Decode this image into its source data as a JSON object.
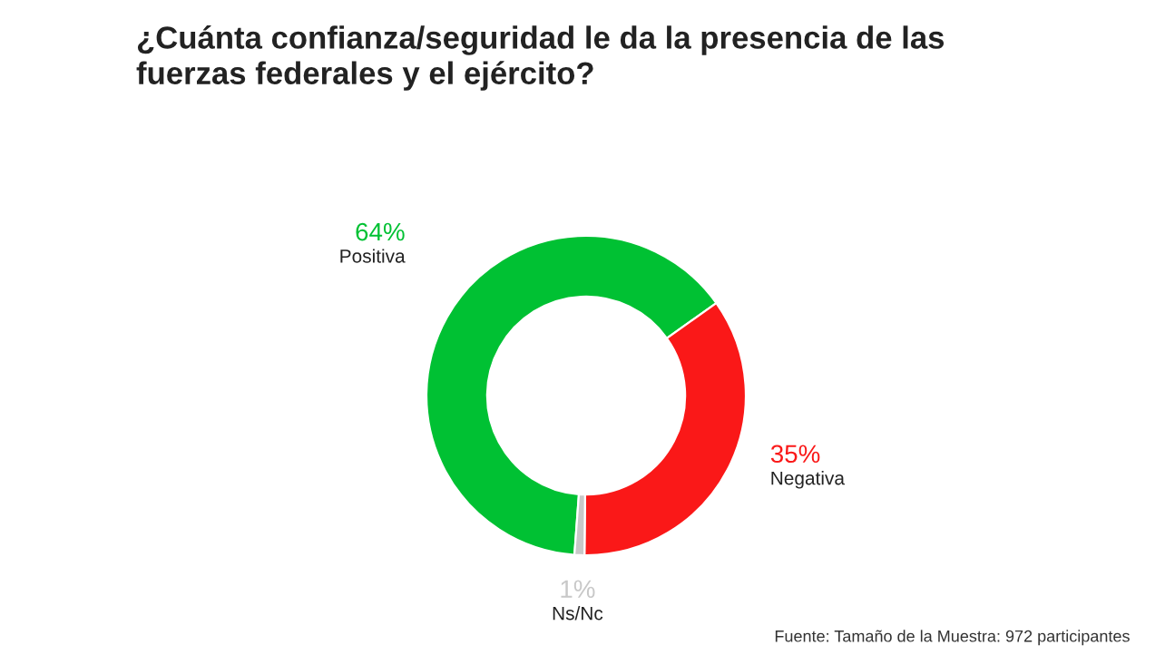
{
  "chart_data": {
    "type": "donut",
    "title": "¿Cuánta confianza/seguridad le da la presencia de las fuerzas federales y el ejército?",
    "categories": [
      "Positiva",
      "Negativa",
      "Ns/Nc"
    ],
    "values": [
      64,
      35,
      1
    ],
    "colors": [
      "#00c133",
      "#fa1818",
      "#c8c8c8"
    ],
    "value_labels": [
      "64%",
      "35%",
      "1%"
    ],
    "annotations": [
      "Fuente: Tamaño de la Muestra: 972 participantes"
    ]
  }
}
